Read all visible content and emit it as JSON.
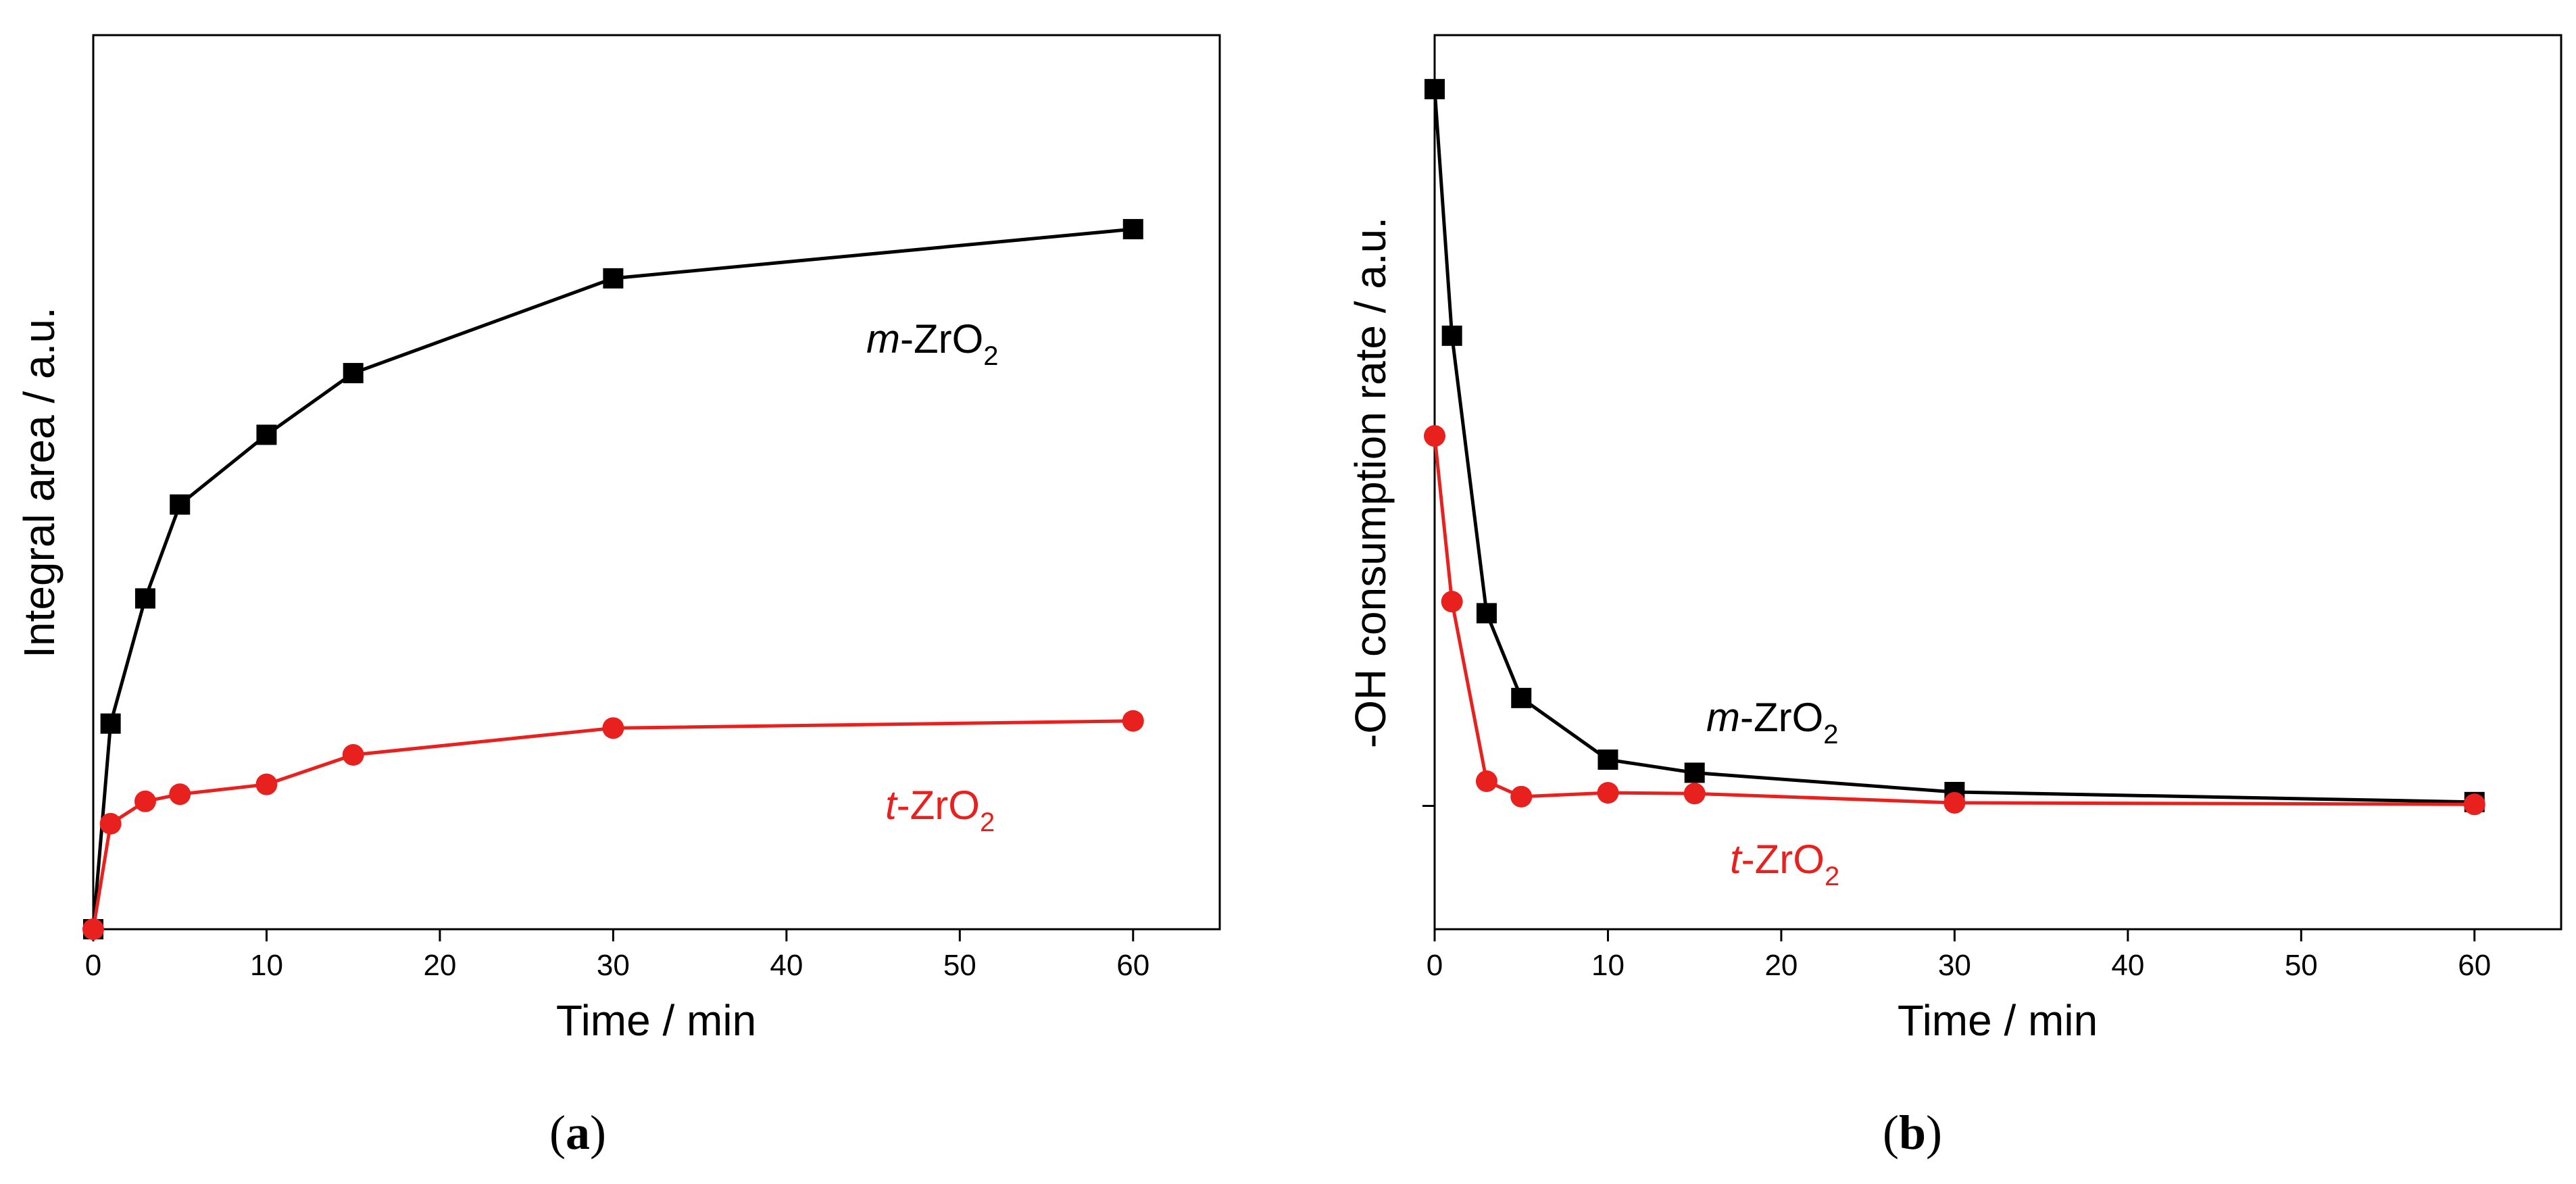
{
  "chart_data": [
    {
      "type": "line",
      "panel_label": "a",
      "xlabel": "Time / min",
      "ylabel": "Integral area / a.u.",
      "xlim": [
        0,
        65
      ],
      "ylim": [
        0,
        1.0
      ],
      "xticks": [
        0,
        10,
        20,
        30,
        40,
        50,
        60
      ],
      "series": [
        {
          "name": "m-ZrO2",
          "label_prefix": "m",
          "label_main": "-ZrO",
          "label_sub": "2",
          "color": "#000000",
          "marker": "square",
          "x": [
            0,
            1,
            3,
            5,
            10,
            15,
            30,
            60
          ],
          "y": [
            0,
            0.23,
            0.37,
            0.475,
            0.553,
            0.622,
            0.728,
            0.783
          ]
        },
        {
          "name": "t-ZrO2",
          "label_prefix": "t",
          "label_main": "-ZrO",
          "label_sub": "2",
          "color": "#e8201e",
          "marker": "circle",
          "x": [
            0,
            1,
            3,
            5,
            10,
            15,
            30,
            60
          ],
          "y": [
            0,
            0.118,
            0.143,
            0.151,
            0.162,
            0.195,
            0.225,
            0.233
          ]
        }
      ]
    },
    {
      "type": "line",
      "panel_label": "b",
      "xlabel": "Time / min",
      "ylabel": "-OH consumption rate / a.u.",
      "xlim": [
        0,
        65
      ],
      "ylim": [
        -0.16,
        1.0
      ],
      "xticks": [
        0,
        10,
        20,
        30,
        40,
        50,
        60
      ],
      "yticks_unlabeled": [
        0
      ],
      "series": [
        {
          "name": "m-ZrO2",
          "label_prefix": "m",
          "label_main": "-ZrO",
          "label_sub": "2",
          "color": "#000000",
          "marker": "square",
          "x": [
            0,
            1,
            3,
            5,
            10,
            15,
            30,
            60
          ],
          "y": [
            0.93,
            0.61,
            0.25,
            0.14,
            0.06,
            0.043,
            0.018,
            0.005
          ]
        },
        {
          "name": "t-ZrO2",
          "label_prefix": "t",
          "label_main": "-ZrO",
          "label_sub": "2",
          "color": "#e8201e",
          "marker": "circle",
          "x": [
            0,
            1,
            3,
            5,
            10,
            15,
            30,
            60
          ],
          "y": [
            0.48,
            0.265,
            0.032,
            0.012,
            0.017,
            0.016,
            0.004,
            0.002
          ]
        }
      ]
    }
  ]
}
